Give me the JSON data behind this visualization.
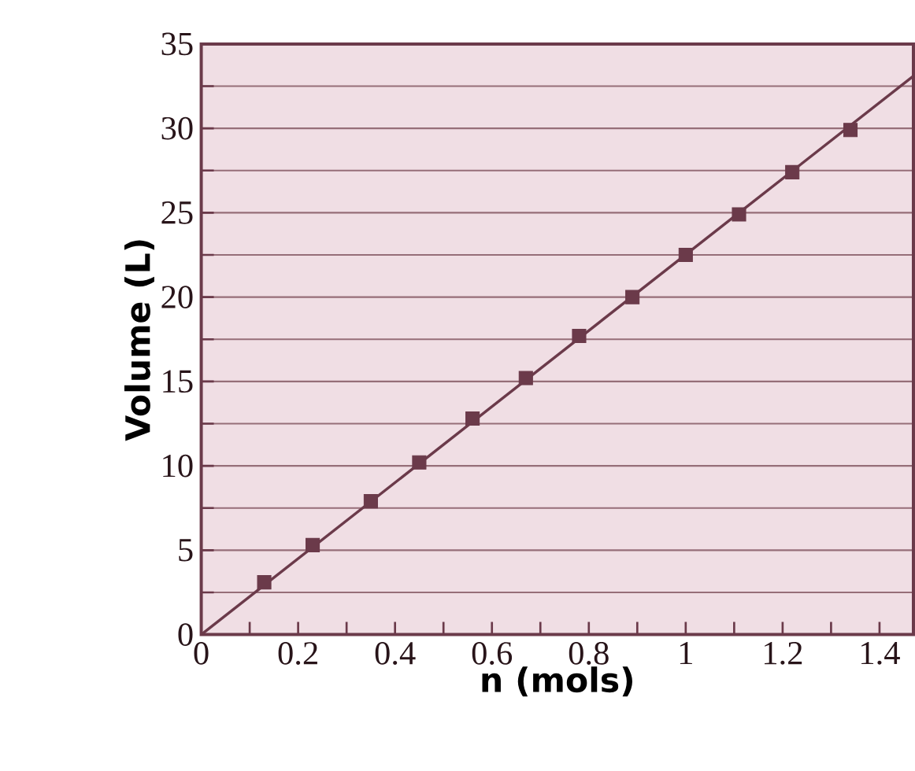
{
  "chart_data": {
    "type": "scatter",
    "xlabel": "n (mols)",
    "ylabel": "Volume (L)",
    "xlim": [
      0,
      1.47
    ],
    "ylim": [
      0,
      35
    ],
    "xticks": [
      0,
      {
        "value": 0.1,
        "label": null
      },
      0.2,
      {
        "value": 0.3,
        "label": null
      },
      0.4,
      {
        "value": 0.5,
        "label": null
      },
      0.6,
      {
        "value": 0.7,
        "label": null
      },
      0.8,
      {
        "value": 0.9,
        "label": null
      },
      1,
      {
        "value": 1.1,
        "label": null
      },
      1.2,
      {
        "value": 1.3,
        "label": null
      },
      1.4
    ],
    "yticks": [
      0,
      {
        "value": 2.5,
        "label": null
      },
      5,
      {
        "value": 7.5,
        "label": null
      },
      10,
      {
        "value": 12.5,
        "label": null
      },
      15,
      {
        "value": 17.5,
        "label": null
      },
      20,
      {
        "value": 22.5,
        "label": null
      },
      25,
      {
        "value": 27.5,
        "label": null
      },
      30,
      {
        "value": 32.5,
        "label": null
      },
      35
    ],
    "grid": "y",
    "marker": "square",
    "series": [
      {
        "color": "#6b3a4a",
        "x": [
          0.13,
          0.23,
          0.35,
          0.45,
          0.56,
          0.67,
          0.78,
          0.89,
          1.0,
          1.11,
          1.22,
          1.34
        ],
        "values": [
          3.1,
          5.3,
          7.9,
          10.2,
          12.8,
          15.2,
          17.7,
          20.0,
          22.5,
          24.9,
          27.4,
          29.9
        ]
      },
      {
        "type": "line",
        "marker": "none",
        "color": "#6b3a4a",
        "x": [
          0,
          1.47
        ],
        "values": [
          0,
          33.1
        ]
      }
    ]
  }
}
